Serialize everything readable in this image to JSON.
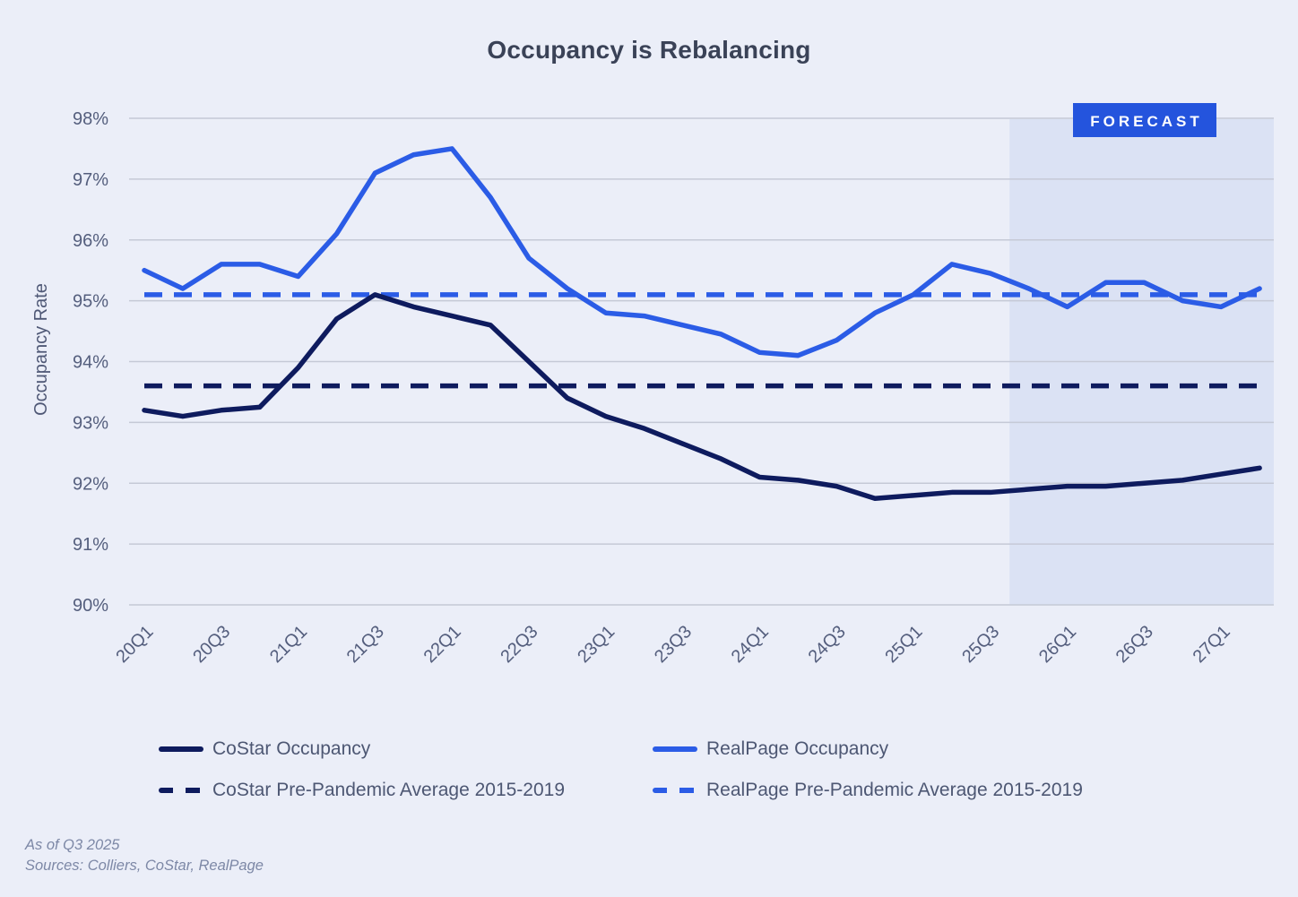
{
  "title": "Occupancy is Rebalancing",
  "y_axis_label": "Occupancy Rate",
  "forecast_label": "FORECAST",
  "footnote": {
    "line1": "As of Q3 2025",
    "line2": "Sources: Colliers, CoStar, RealPage"
  },
  "colors": {
    "background": "#ebeef8",
    "forecast_fill": "#dbe2f4",
    "gridline": "#c5c9d6",
    "costar_navy": "#0e1b5e",
    "realpage_blue": "#2b5ce6",
    "badge_blue": "#2454dd",
    "tick_text": "#545e7d",
    "legend_text": "#4d5773",
    "footnote_text": "#7d88a6"
  },
  "chart_data": {
    "type": "line",
    "x_all": [
      "20Q1",
      "20Q2",
      "20Q3",
      "20Q4",
      "21Q1",
      "21Q2",
      "21Q3",
      "21Q4",
      "22Q1",
      "22Q2",
      "22Q3",
      "22Q4",
      "23Q1",
      "23Q2",
      "23Q3",
      "23Q4",
      "24Q1",
      "24Q2",
      "24Q3",
      "24Q4",
      "25Q1",
      "25Q2",
      "25Q3",
      "25Q4",
      "26Q1",
      "26Q2",
      "26Q3",
      "26Q4",
      "27Q1",
      "27Q2"
    ],
    "x_tick_labels": [
      "20Q1",
      "20Q3",
      "21Q1",
      "21Q3",
      "22Q1",
      "22Q3",
      "23Q1",
      "23Q3",
      "24Q1",
      "24Q3",
      "25Q1",
      "25Q3",
      "26Q1",
      "26Q3",
      "27Q1"
    ],
    "ylabel": "Occupancy Rate",
    "ylim": [
      90,
      98
    ],
    "y_ticks": [
      90,
      91,
      92,
      93,
      94,
      95,
      96,
      97,
      98
    ],
    "y_tick_suffix": "%",
    "grid": true,
    "legend_position": "bottom",
    "forecast": {
      "label": "FORECAST",
      "starts_after": "25Q3"
    },
    "series": [
      {
        "name": "CoStar Occupancy",
        "style": "solid",
        "color": "#0e1b5e",
        "values": [
          93.2,
          93.1,
          93.2,
          93.25,
          93.9,
          94.7,
          95.1,
          94.9,
          94.75,
          94.6,
          94.0,
          93.4,
          93.1,
          92.9,
          92.65,
          92.4,
          92.1,
          92.05,
          91.95,
          91.75,
          91.8,
          91.85,
          91.85,
          91.9,
          91.95,
          91.95,
          92.0,
          92.05,
          92.15,
          92.25
        ]
      },
      {
        "name": "RealPage Occupancy",
        "style": "solid",
        "color": "#2b5ce6",
        "values": [
          95.5,
          95.2,
          95.6,
          95.6,
          95.4,
          96.1,
          97.1,
          97.4,
          97.5,
          96.7,
          95.7,
          95.2,
          94.8,
          94.75,
          94.6,
          94.45,
          94.15,
          94.1,
          94.35,
          94.8,
          95.1,
          95.6,
          95.45,
          95.2,
          94.9,
          95.3,
          95.3,
          95.0,
          94.9,
          95.2
        ]
      },
      {
        "name": "CoStar Pre-Pandemic Average 2015-2019",
        "style": "dashed",
        "color": "#0e1b5e",
        "constant": 93.6
      },
      {
        "name": "RealPage Pre-Pandemic Average 2015-2019",
        "style": "dashed",
        "color": "#2b5ce6",
        "constant": 95.1
      }
    ]
  }
}
